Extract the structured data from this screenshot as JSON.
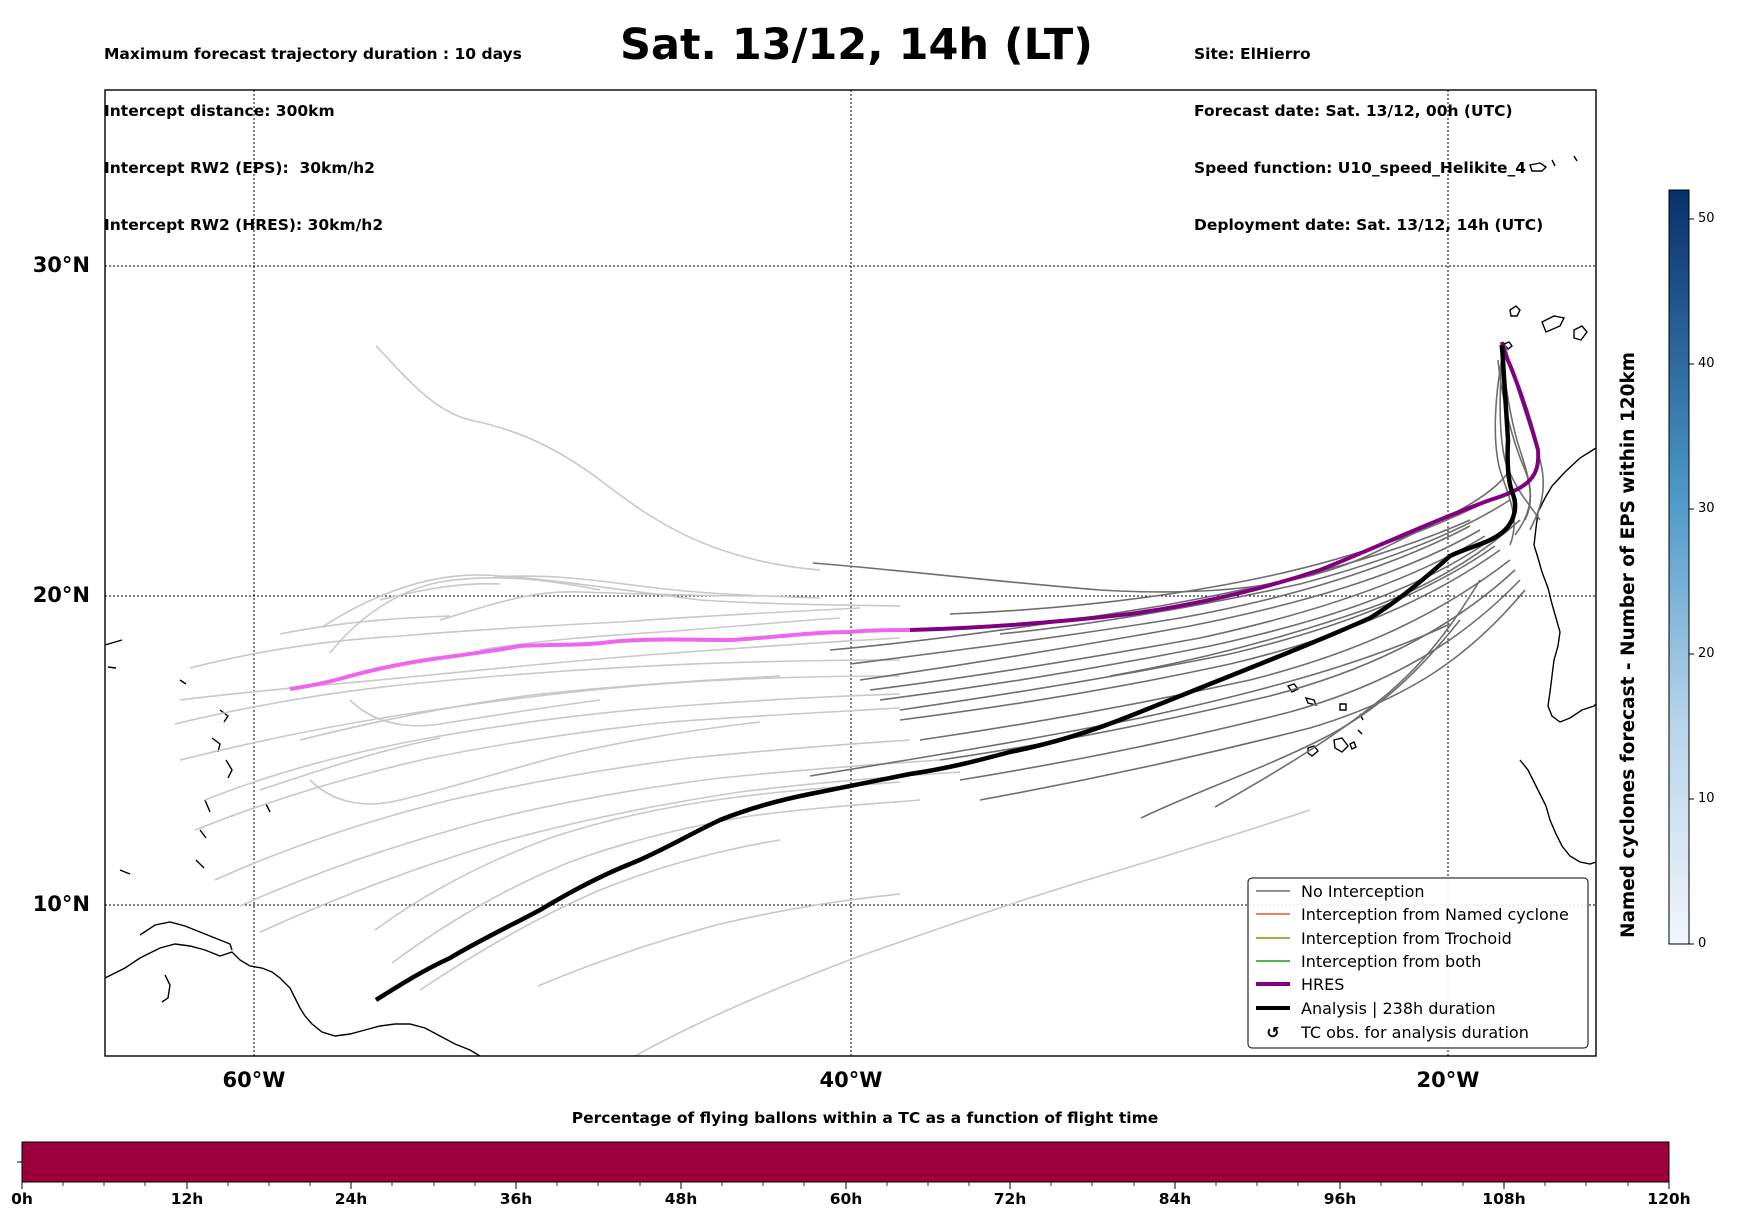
{
  "header": {
    "info_left": [
      "Maximum forecast trajectory duration : 10 days",
      "Intercept distance: 300km",
      "Intercept RW2 (EPS):  30km/h2",
      "Intercept RW2 (HRES): 30km/h2"
    ],
    "title": "Sat. 13/12, 14h (LT)",
    "info_right": [
      "Site: ElHierro",
      "Forecast date: Sat. 13/12, 00h (UTC)",
      "Speed function: U10_speed_Helikite_4",
      "Deployment date: Sat. 13/12, 14h (UTC)"
    ]
  },
  "map": {
    "lat_labels": [
      "30°N",
      "20°N",
      "10°N"
    ],
    "lon_labels": [
      "60°W",
      "40°W",
      "20°W"
    ],
    "colors": {
      "no_interception": "#6e6e6e",
      "no_interception_far": "#c8c8c8",
      "named_cyclone": "#e8572e",
      "trochoid": "#8a8a10",
      "both": "#1a9e1a",
      "hres": "#800080",
      "hres_far": "#ee66ee",
      "analysis": "#000000"
    }
  },
  "legend": {
    "items": [
      {
        "label": "No Interception",
        "style": "thin-gray"
      },
      {
        "label": "Interception from Named cyclone",
        "style": "thin-orange"
      },
      {
        "label": "Interception from Trochoid",
        "style": "thin-olive"
      },
      {
        "label": "Interception from both",
        "style": "thin-green"
      },
      {
        "label": "HRES",
        "style": "thick-purple"
      },
      {
        "label": "Analysis | 238h duration",
        "style": "thick-black"
      },
      {
        "label": "TC obs. for analysis duration",
        "style": "symbol"
      }
    ],
    "symbol_glyph": "↺"
  },
  "colorbar": {
    "title": "Named cyclones forecast - Number of EPS within 120km",
    "ticks": [
      "0",
      "10",
      "20",
      "30",
      "40",
      "50"
    ],
    "range": [
      0,
      52
    ]
  },
  "time_bar": {
    "title": "Percentage of flying ballons within a TC as a function of flight time",
    "ticks": [
      "0h",
      "12h",
      "24h",
      "36h",
      "48h",
      "60h",
      "72h",
      "84h",
      "96h",
      "108h",
      "120h"
    ],
    "fill_color": "#9b003c",
    "percentage_in_tc": 0
  }
}
